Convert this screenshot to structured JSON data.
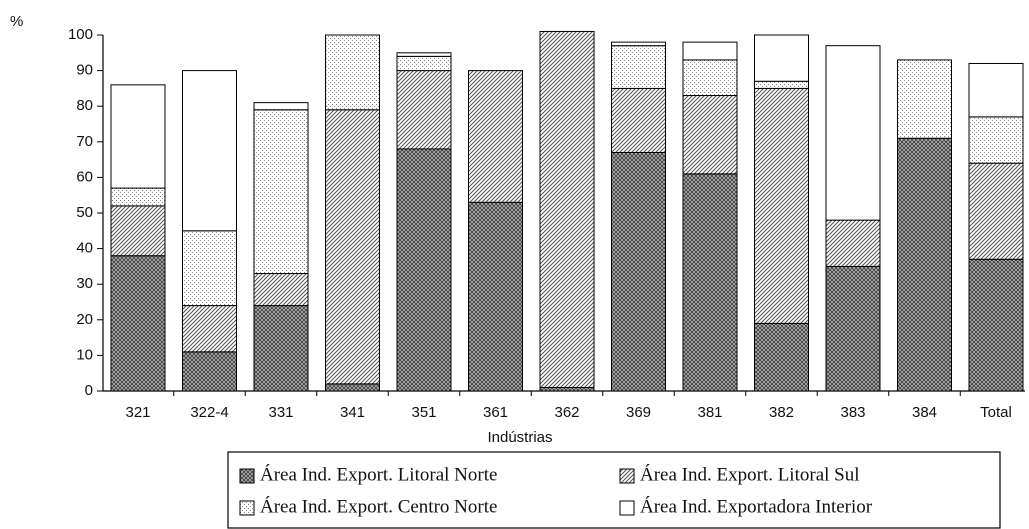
{
  "chart_data": {
    "type": "stacked_bar",
    "ylabel": "%",
    "xlabel": "Indústrias",
    "categories": [
      "321",
      "322-4",
      "331",
      "341",
      "351",
      "361",
      "362",
      "369",
      "381",
      "382",
      "383",
      "384",
      "Total"
    ],
    "series": [
      {
        "name": "Área Ind. Export. Litoral Norte",
        "color": "#444444",
        "values": [
          38,
          11,
          24,
          2,
          68,
          53,
          1,
          67,
          61,
          19,
          35,
          71,
          37
        ]
      },
      {
        "name": "Área Ind. Export. Litoral Sul",
        "color": "#555555",
        "values": [
          14,
          13,
          9,
          77,
          22,
          37,
          100,
          18,
          22,
          66,
          13,
          0,
          27
        ]
      },
      {
        "name": "Área Ind. Export. Centro Norte",
        "color": "#888888",
        "values": [
          5,
          21,
          46,
          21,
          4,
          0,
          0,
          12,
          10,
          2,
          0,
          22,
          13
        ]
      },
      {
        "name": "Área Ind. Exportadora Interior",
        "color": "#ffffff",
        "values": [
          29,
          45,
          2,
          0,
          1,
          0,
          0,
          1,
          5,
          13,
          49,
          0,
          15
        ]
      }
    ],
    "ylim": [
      0,
      100
    ],
    "yticks": [
      0,
      10,
      20,
      30,
      40,
      50,
      60,
      70,
      80,
      90,
      100
    ],
    "legend": "bottom"
  }
}
